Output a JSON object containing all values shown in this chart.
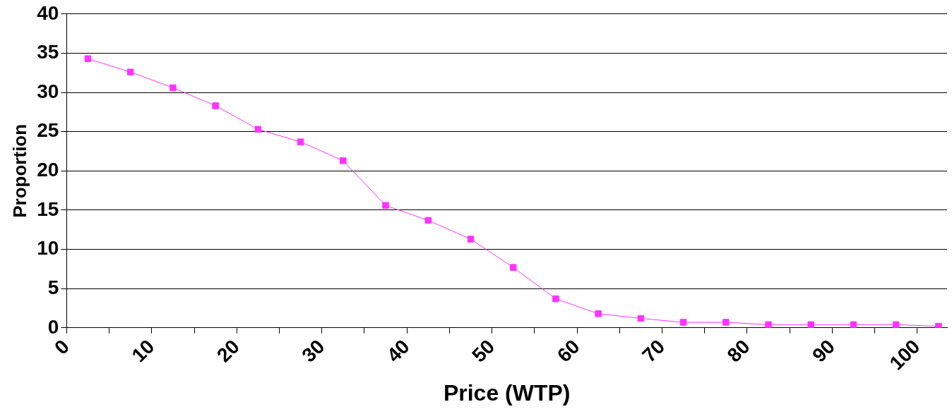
{
  "chart_data": {
    "type": "line",
    "xlabel": "Price (WTP)",
    "ylabel": "Proportion",
    "marker": "square",
    "line_style": "solid",
    "grid": "y",
    "legend": false,
    "x": [
      2.5,
      7.5,
      12.5,
      17.5,
      22.5,
      27.5,
      32.5,
      37.5,
      42.5,
      47.5,
      52.5,
      57.5,
      62.5,
      67.5,
      72.5,
      77.5,
      82.5,
      87.5,
      92.5,
      97.5,
      102.5
    ],
    "series": [
      {
        "color": "#ff33ff",
        "values": [
          34.3,
          32.6,
          30.6,
          28.3,
          25.3,
          23.7,
          21.3,
          15.6,
          13.7,
          11.3,
          7.7,
          3.7,
          1.8,
          1.2,
          0.7,
          0.7,
          0.4,
          0.4,
          0.4,
          0.4,
          0.2
        ]
      }
    ],
    "xlim": [
      0,
      103.5
    ],
    "xticks": [
      0,
      {
        "value": 5,
        "label": null
      },
      10,
      {
        "value": 15,
        "label": null
      },
      20,
      {
        "value": 25,
        "label": null
      },
      30,
      {
        "value": 35,
        "label": null
      },
      40,
      {
        "value": 45,
        "label": null
      },
      50,
      {
        "value": 55,
        "label": null
      },
      60,
      {
        "value": 65,
        "label": null
      },
      70,
      {
        "value": 75,
        "label": null
      },
      80,
      {
        "value": 85,
        "label": null
      },
      90,
      {
        "value": 95,
        "label": null
      },
      100
    ],
    "ylim": [
      0,
      40
    ],
    "yticks": [
      0,
      5,
      10,
      15,
      20,
      25,
      30,
      35,
      40
    ]
  }
}
